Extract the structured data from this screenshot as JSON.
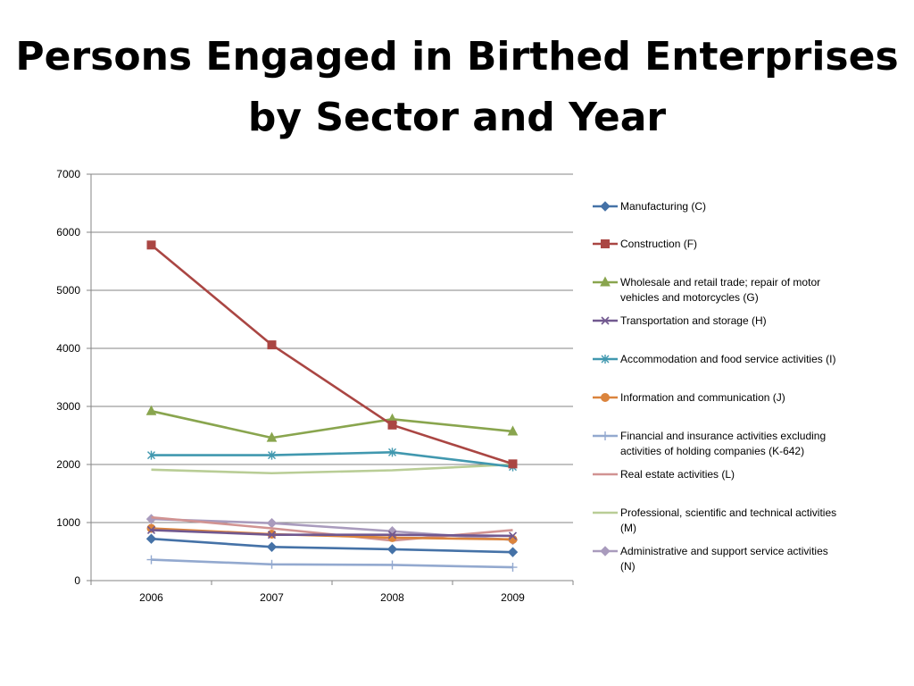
{
  "title": {
    "line1": "Persons Engaged in Birthed Enterprises",
    "line2": "by Sector and Year"
  },
  "chart_data": {
    "type": "line",
    "title": "Persons Engaged in Birthed Enterprises by Sector and Year",
    "xlabel": "",
    "ylabel": "",
    "categories": [
      "2006",
      "2007",
      "2008",
      "2009"
    ],
    "ylim": [
      0,
      7000
    ],
    "yticks": [
      0,
      1000,
      2000,
      3000,
      4000,
      5000,
      6000,
      7000
    ],
    "grid": true,
    "legend_position": "right",
    "series": [
      {
        "name": "Manufacturing (C)",
        "values": [
          720,
          580,
          540,
          490
        ],
        "color": "#4572A7",
        "marker": "diamond"
      },
      {
        "name": "Construction (F)",
        "values": [
          5780,
          4060,
          2680,
          2010
        ],
        "color": "#AA4643",
        "marker": "square"
      },
      {
        "name": "Wholesale and retail trade; repair of motor vehicles and motorcycles (G)",
        "values": [
          2920,
          2460,
          2780,
          2570
        ],
        "color": "#89A54E",
        "marker": "triangle"
      },
      {
        "name": "Transportation and storage (H)",
        "values": [
          870,
          790,
          790,
          770
        ],
        "color": "#71588F",
        "marker": "x"
      },
      {
        "name": "Accommodation and food service activities (I)",
        "values": [
          2160,
          2160,
          2210,
          1960
        ],
        "color": "#4198AF",
        "marker": "star"
      },
      {
        "name": "Information and communication (J)",
        "values": [
          900,
          800,
          740,
          710
        ],
        "color": "#DB843D",
        "marker": "circle"
      },
      {
        "name": "Financial and insurance activities excluding activities of holding companies (K-642)",
        "values": [
          360,
          280,
          270,
          230
        ],
        "color": "#93A9CF",
        "marker": "plus"
      },
      {
        "name": "Real estate activities (L)",
        "values": [
          1090,
          900,
          690,
          870
        ],
        "color": "#D19392",
        "marker": "none"
      },
      {
        "name": "Professional, scientific and technical activities (M)",
        "values": [
          1910,
          1850,
          1900,
          2000
        ],
        "color": "#B9CD96",
        "marker": "none"
      },
      {
        "name": "Administrative and support service activities (N)",
        "values": [
          1060,
          990,
          850,
          700
        ],
        "color": "#A99BBD",
        "marker": "diamond"
      }
    ],
    "legend_entries": [
      [
        "Manufacturing (C)"
      ],
      [
        "Construction (F)"
      ],
      [
        "Wholesale and retail trade; repair of motor",
        "vehicles and motorcycles (G)"
      ],
      [
        "Transportation and storage (H)"
      ],
      [
        "Accommodation and food service activities (I)"
      ],
      [
        "Information and communication (J)"
      ],
      [
        "Financial and insurance activities excluding",
        "activities of holding companies (K-642)"
      ],
      [
        "Real estate activities (L)"
      ],
      [
        "Professional, scientific and technical activities",
        "(M)"
      ],
      [
        "Administrative and support service activities",
        "(N)"
      ]
    ]
  }
}
